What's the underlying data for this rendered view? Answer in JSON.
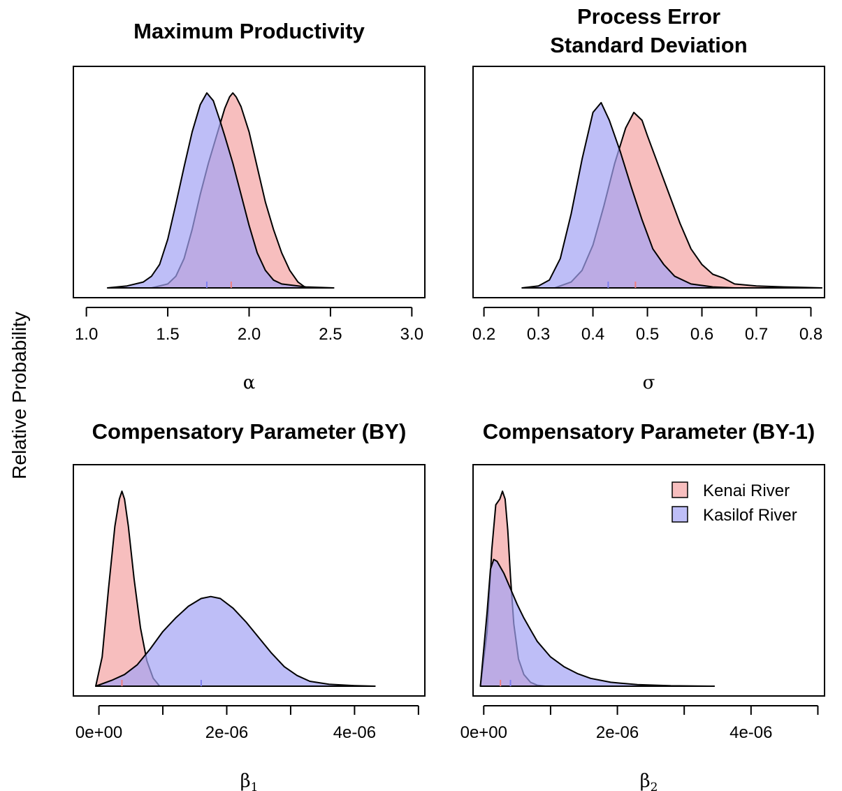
{
  "figure": {
    "ylabel": "Relative Probability",
    "colors": {
      "kenai": "#f4a3a3",
      "kasilof": "#a3a3f4",
      "outline": "#000000"
    }
  },
  "legend": {
    "placement": "top-right of bottom-right panel",
    "entries": [
      "Kenai River",
      "Kasilof River"
    ]
  },
  "chart_data": [
    {
      "type": "area",
      "title": "Maximum Productivity",
      "xlabel_symbol": "α",
      "xlabel_subscript": "",
      "ylabel": "",
      "xlim": [
        0.92,
        3.08
      ],
      "xticks": [
        1.0,
        1.5,
        2.0,
        2.5,
        3.0
      ],
      "xtick_labels": [
        "1.0",
        "1.5",
        "2.0",
        "2.5",
        "3.0"
      ],
      "series": [
        {
          "name": "Kenai River",
          "median": 1.89,
          "x": [
            1.4,
            1.5,
            1.55,
            1.6,
            1.65,
            1.7,
            1.75,
            1.8,
            1.85,
            1.88,
            1.9,
            1.92,
            1.95,
            2.0,
            2.05,
            2.1,
            2.15,
            2.2,
            2.25,
            2.3,
            2.35
          ],
          "y": [
            0.0,
            0.02,
            0.06,
            0.15,
            0.3,
            0.48,
            0.64,
            0.78,
            0.92,
            0.98,
            1.0,
            0.98,
            0.93,
            0.8,
            0.62,
            0.44,
            0.3,
            0.18,
            0.09,
            0.03,
            0.0
          ]
        },
        {
          "name": "Kasilof River",
          "median": 1.74,
          "x": [
            1.13,
            1.25,
            1.35,
            1.4,
            1.45,
            1.5,
            1.55,
            1.6,
            1.65,
            1.7,
            1.74,
            1.78,
            1.82,
            1.85,
            1.9,
            1.95,
            2.0,
            2.05,
            2.1,
            2.15,
            2.2,
            2.35,
            2.52
          ],
          "y": [
            0.0,
            0.01,
            0.03,
            0.06,
            0.12,
            0.25,
            0.43,
            0.62,
            0.8,
            0.94,
            1.0,
            0.96,
            0.86,
            0.78,
            0.64,
            0.48,
            0.32,
            0.18,
            0.09,
            0.04,
            0.02,
            0.005,
            0.0
          ]
        }
      ]
    },
    {
      "type": "area",
      "title": "Process Error\nStandard Deviation",
      "xlabel_symbol": "σ",
      "xlabel_subscript": "",
      "ylabel": "",
      "xlim": [
        0.18,
        0.825
      ],
      "xticks": [
        0.2,
        0.3,
        0.4,
        0.5,
        0.6,
        0.7,
        0.8
      ],
      "xtick_labels": [
        "0.2",
        "0.3",
        "0.4",
        "0.5",
        "0.6",
        "0.7",
        "0.8"
      ],
      "series": [
        {
          "name": "Kenai River",
          "median": 0.478,
          "x": [
            0.33,
            0.36,
            0.38,
            0.4,
            0.42,
            0.44,
            0.46,
            0.475,
            0.49,
            0.5,
            0.52,
            0.54,
            0.56,
            0.58,
            0.6,
            0.62,
            0.64,
            0.66,
            0.7,
            0.75,
            0.82
          ],
          "y": [
            0.0,
            0.03,
            0.09,
            0.22,
            0.42,
            0.64,
            0.82,
            0.9,
            0.86,
            0.78,
            0.63,
            0.48,
            0.33,
            0.2,
            0.12,
            0.07,
            0.05,
            0.02,
            0.01,
            0.005,
            0.0
          ]
        },
        {
          "name": "Kasilof River",
          "median": 0.428,
          "x": [
            0.27,
            0.3,
            0.32,
            0.34,
            0.36,
            0.38,
            0.4,
            0.415,
            0.43,
            0.45,
            0.47,
            0.49,
            0.51,
            0.53,
            0.55,
            0.58,
            0.62,
            0.66
          ],
          "y": [
            0.0,
            0.01,
            0.04,
            0.15,
            0.38,
            0.66,
            0.9,
            0.95,
            0.86,
            0.7,
            0.52,
            0.35,
            0.2,
            0.12,
            0.06,
            0.02,
            0.005,
            0.0
          ]
        }
      ]
    },
    {
      "type": "area",
      "title": "Compensatory Parameter (BY)",
      "xlabel_symbol": "β",
      "xlabel_subscript": "1",
      "ylabel": "",
      "xlim": [
        -4e-07,
        5.1e-06
      ],
      "xticks": [
        0,
        1e-06,
        2e-06,
        3e-06,
        4e-06,
        5e-06
      ],
      "xtick_labels": [
        "0e+00",
        "",
        "2e-06",
        "",
        "4e-06",
        ""
      ],
      "series": [
        {
          "name": "Kenai River",
          "median": 3.6e-07,
          "x": [
            -5e-08,
            5e-08,
            1.5e-07,
            2.5e-07,
            3.2e-07,
            3.6e-07,
            4e-07,
            4.6e-07,
            5.5e-07,
            6.5e-07,
            7.5e-07,
            8.5e-07,
            9.5e-07
          ],
          "y": [
            0.0,
            0.15,
            0.5,
            0.82,
            0.96,
            1.0,
            0.96,
            0.82,
            0.55,
            0.3,
            0.13,
            0.04,
            0.0
          ]
        },
        {
          "name": "Kasilof River",
          "median": 1.6e-06,
          "x": [
            -5e-08,
            2e-07,
            4e-07,
            6e-07,
            8e-07,
            1e-06,
            1.2e-06,
            1.4e-06,
            1.6e-06,
            1.75e-06,
            1.9e-06,
            2.1e-06,
            2.3e-06,
            2.5e-06,
            2.7e-06,
            2.9e-06,
            3.1e-06,
            3.3e-06,
            3.6e-06,
            4e-06,
            4.32e-06
          ],
          "y": [
            0.0,
            0.03,
            0.06,
            0.11,
            0.19,
            0.28,
            0.35,
            0.41,
            0.45,
            0.46,
            0.45,
            0.4,
            0.33,
            0.25,
            0.17,
            0.1,
            0.055,
            0.025,
            0.01,
            0.003,
            0.0
          ]
        }
      ]
    },
    {
      "type": "area",
      "title": "Compensatory Parameter (BY-1)",
      "xlabel_symbol": "β",
      "xlabel_subscript": "2",
      "ylabel": "",
      "xlim": [
        -1.6e-07,
        5.1e-06
      ],
      "xticks": [
        0,
        1e-06,
        2e-06,
        3e-06,
        4e-06,
        5e-06
      ],
      "xtick_labels": [
        "0e+00",
        "",
        "2e-06",
        "",
        "4e-06",
        ""
      ],
      "series": [
        {
          "name": "Kenai River",
          "median": 2.5e-07,
          "x": [
            -5e-08,
            5e-08,
            1.2e-07,
            1.8e-07,
            2.4e-07,
            2.8e-07,
            3.2e-07,
            3.6e-07,
            4e-07,
            4.5e-07,
            5.2e-07,
            6e-07,
            7e-07,
            8e-07,
            9.2e-07
          ],
          "y": [
            0.0,
            0.28,
            0.7,
            0.93,
            0.96,
            1.0,
            0.96,
            0.8,
            0.56,
            0.32,
            0.14,
            0.06,
            0.02,
            0.005,
            0.0
          ]
        },
        {
          "name": "Kasilof River",
          "median": 4e-07,
          "x": [
            -5e-08,
            5e-08,
            1e-07,
            1.5e-07,
            2e-07,
            3e-07,
            4e-07,
            5e-07,
            6e-07,
            7e-07,
            8e-07,
            1e-06,
            1.2e-06,
            1.4e-06,
            1.6e-06,
            1.9e-06,
            2.3e-06,
            2.8e-06,
            3.45e-06
          ],
          "y": [
            0.0,
            0.38,
            0.6,
            0.65,
            0.64,
            0.58,
            0.5,
            0.42,
            0.35,
            0.29,
            0.23,
            0.15,
            0.1,
            0.065,
            0.04,
            0.02,
            0.008,
            0.002,
            0.0
          ]
        }
      ]
    }
  ]
}
